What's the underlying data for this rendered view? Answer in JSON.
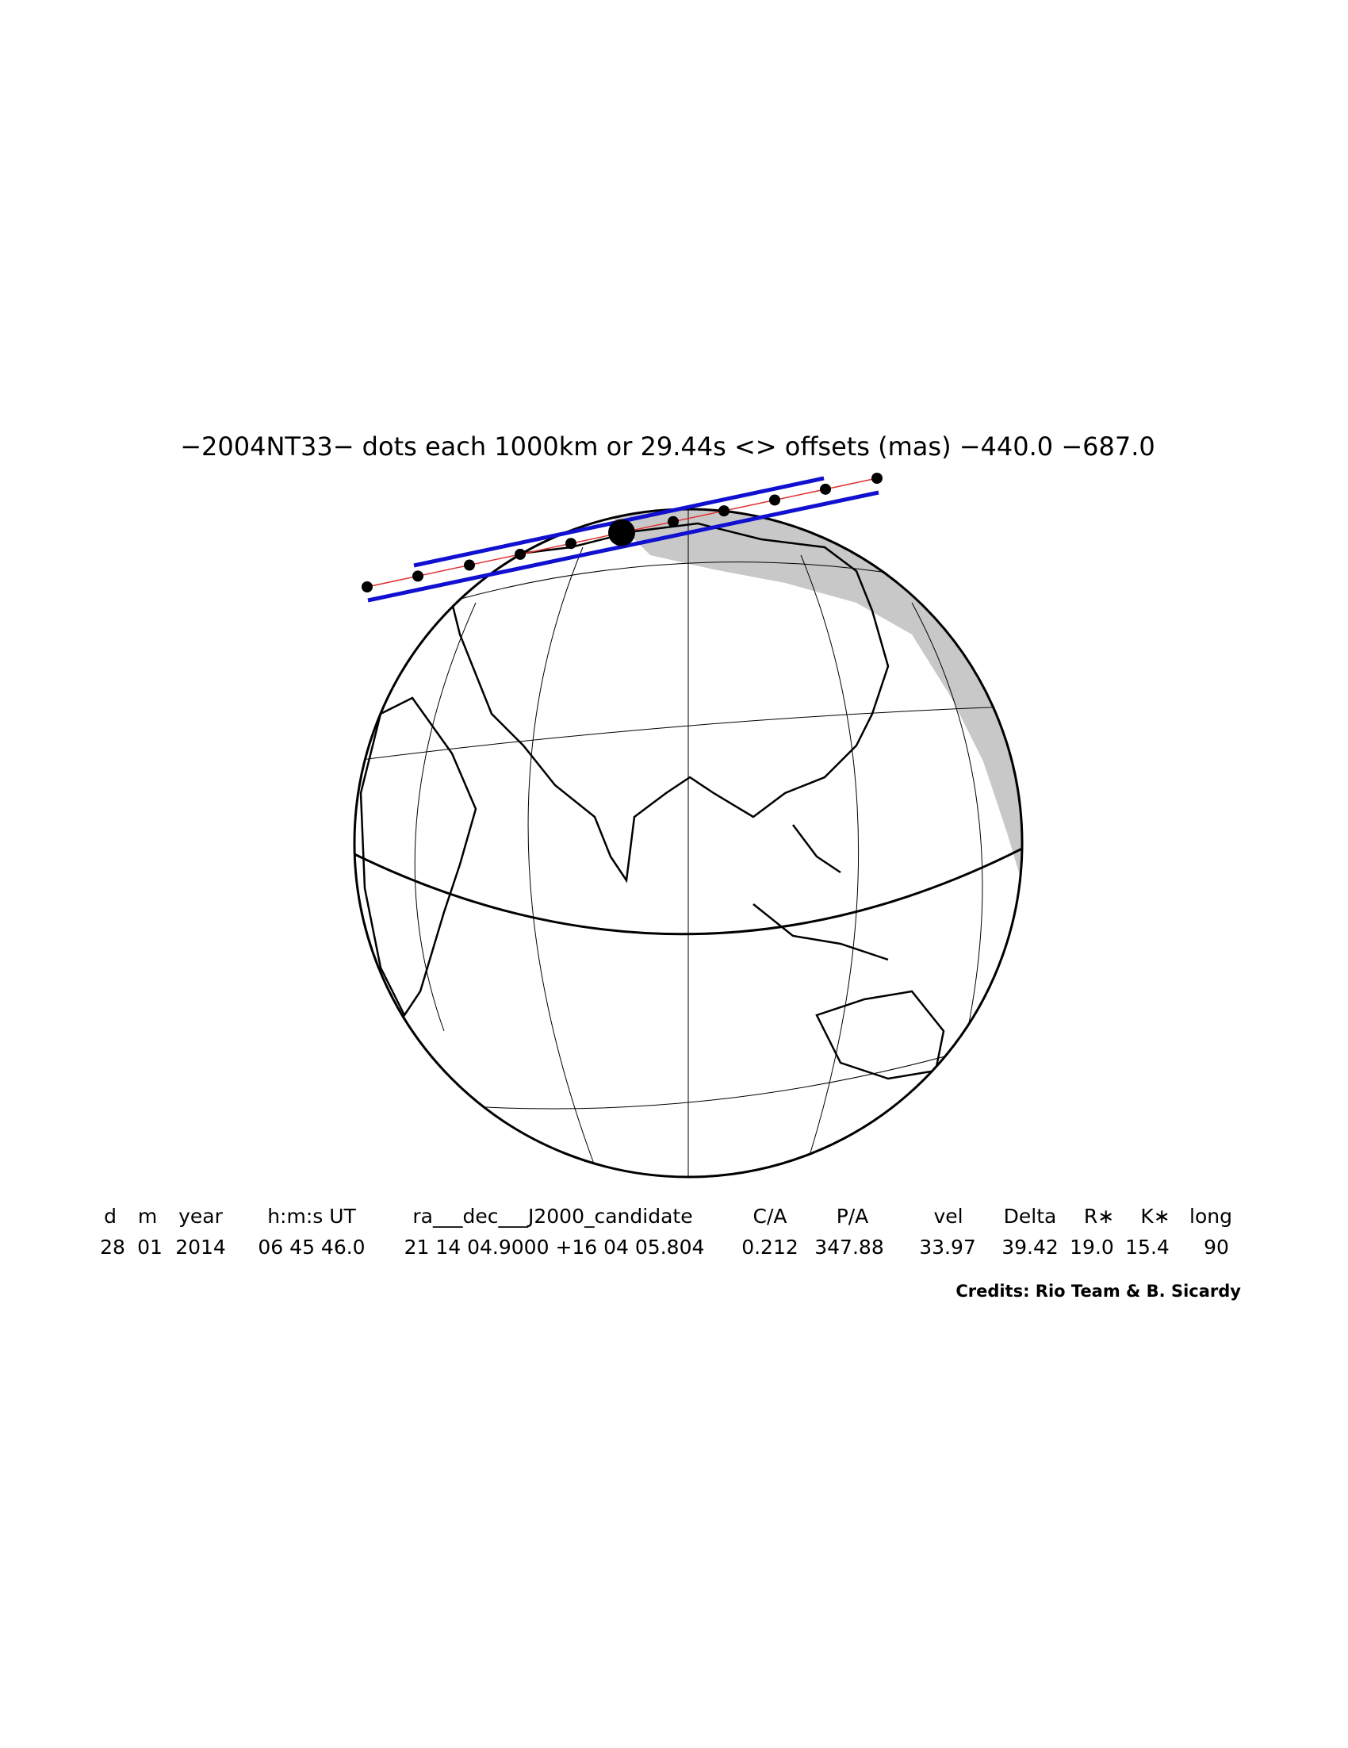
{
  "title": "−2004NT33− dots each 1000km or 29.44s <> offsets (mas) −440.0 −687.0",
  "table": {
    "headers": [
      "d",
      "m",
      "year",
      "h:m:s UT",
      "ra___dec___J2000_candidate",
      "C/A",
      "P/A",
      "vel",
      "Delta",
      "R∗",
      "K∗",
      "long"
    ],
    "rows": [
      [
        "28",
        "01",
        "2014",
        "06 45 46.0",
        "21 14 04.9000 +16 04 05.804",
        "0.212",
        "347.88",
        "33.97",
        "39.42",
        "19.0",
        "15.4",
        "90"
      ]
    ]
  },
  "credits": "Credits: Rio Team & B. Sicardy"
}
